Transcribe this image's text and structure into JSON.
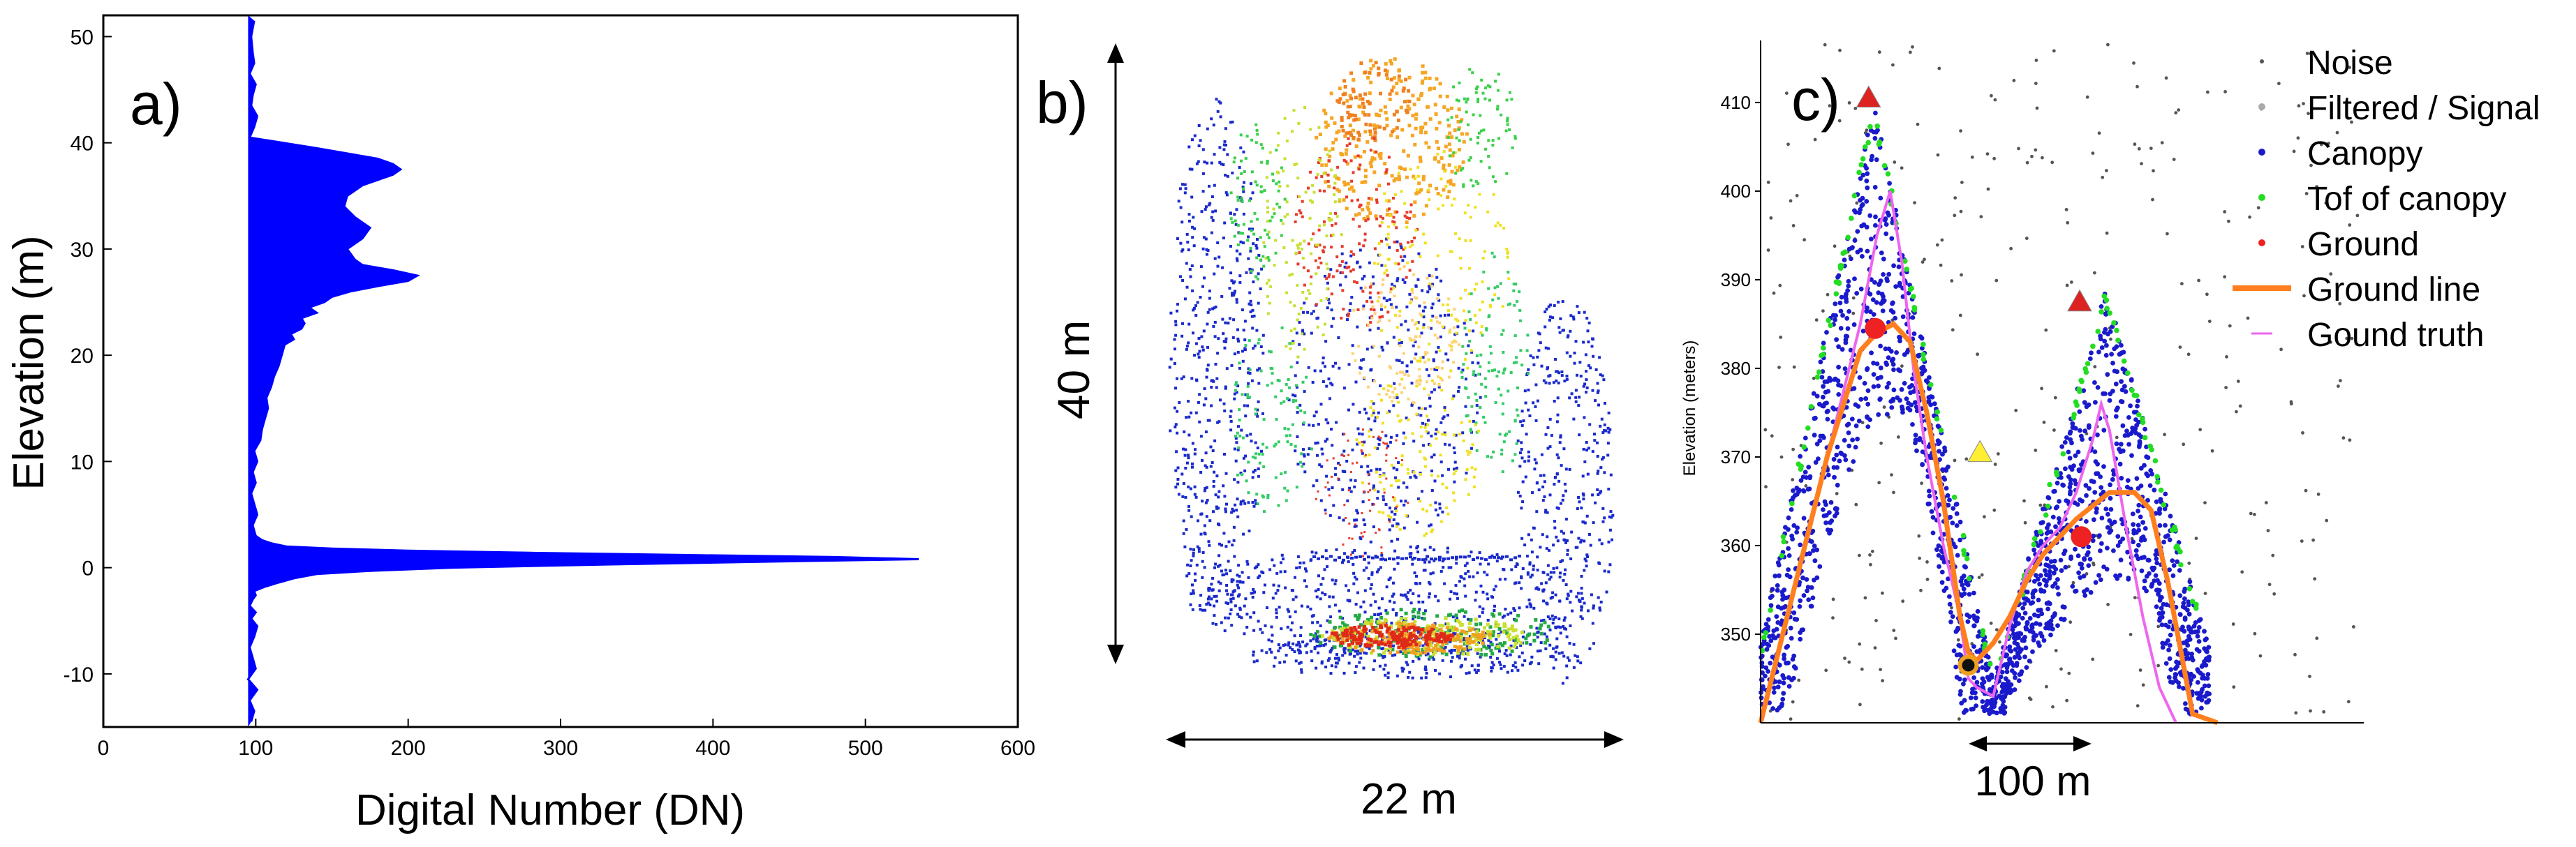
{
  "panel_a": {
    "letter": "a)",
    "chart_data": {
      "type": "line",
      "xlabel": "Digital Number (DN)",
      "ylabel": "Elevation (m)",
      "xlim": [
        0,
        600
      ],
      "ylim": [
        -15,
        52
      ],
      "xticks": [
        "0",
        "100",
        "200",
        "300",
        "400",
        "500",
        "600"
      ],
      "yticks": [
        "-10",
        "0",
        "10",
        "20",
        "30",
        "40",
        "50"
      ],
      "series": [
        {
          "color": "#0000ff",
          "x": [
            97,
            99,
            96,
            101,
            95,
            100,
            98,
            96,
            99,
            101,
            97,
            100,
            96,
            98,
            100,
            99,
            106,
            115,
            125,
            140,
            175,
            230,
            330,
            450,
            535,
            480,
            380,
            280,
            200,
            150,
            120,
            110,
            104,
            100,
            99,
            98,
            101,
            99,
            97,
            100,
            98,
            101,
            99,
            103,
            104,
            106,
            108,
            107,
            110,
            112,
            115,
            117,
            119,
            125,
            123,
            130,
            132,
            130,
            140,
            135,
            145,
            150,
            162,
            180,
            200,
            206,
            190,
            170,
            165,
            160,
            170,
            175,
            165,
            158,
            160,
            170,
            180,
            190,
            195,
            190,
            180,
            140,
            96,
            99,
            101,
            97,
            98,
            100,
            96,
            99,
            98,
            97,
            99
          ],
          "y": [
            -14.5,
            -13.5,
            -12.5,
            -11.5,
            -10.5,
            -9.5,
            -8.5,
            -7.5,
            -6.5,
            -5.5,
            -4.8,
            -4.2,
            -3.6,
            -3.0,
            -2.6,
            -2.2,
            -1.8,
            -1.4,
            -1.0,
            -0.6,
            -0.3,
            0.0,
            0.3,
            0.6,
            0.8,
            1.0,
            1.2,
            1.4,
            1.6,
            1.8,
            2.0,
            2.3,
            2.6,
            3.0,
            3.5,
            4.0,
            5.0,
            6.0,
            7.0,
            8.0,
            9.0,
            10.0,
            11.0,
            12.0,
            13.0,
            14.0,
            15.0,
            16.0,
            17.0,
            18.0,
            19.0,
            20.0,
            21.0,
            21.5,
            22.0,
            22.5,
            23.0,
            23.5,
            24.0,
            24.5,
            25.0,
            25.5,
            26.0,
            26.5,
            27.0,
            27.5,
            28.0,
            28.5,
            29.0,
            30.0,
            31.0,
            32.0,
            33.0,
            34.0,
            35.0,
            36.0,
            36.5,
            37.0,
            37.5,
            38.0,
            38.5,
            39.5,
            40.5,
            41.5,
            42.5,
            43.5,
            44.5,
            45.5,
            46.5,
            47.5,
            48.5,
            50.0,
            51.5
          ]
        }
      ]
    }
  },
  "panel_b": {
    "letter": "b)",
    "height_label": "40 m",
    "width_label": "22 m"
  },
  "panel_c": {
    "letter": "c)",
    "chart_data": {
      "type": "scatter",
      "ylabel": "Elevation (meters)",
      "ylim": [
        340,
        417
      ],
      "yticks": [
        "350",
        "360",
        "370",
        "380",
        "390",
        "400",
        "410"
      ],
      "scale_label": "100 m",
      "legend": {
        "placement": "right",
        "entries": [
          "Noise",
          "Filtered / Signal",
          "Canopy",
          "Tof of canopy",
          "Ground",
          "Ground line",
          "Gound truth"
        ]
      },
      "colors": {
        "noise": "#555555",
        "filtered": "#aaaaaa",
        "canopy": "#1a1acc",
        "top_of_canopy": "#22dd22",
        "ground": "#ee2222",
        "ground_line": "#ff7f1e",
        "ground_truth": "#ee66ee"
      },
      "ground_line": {
        "x": [
          0,
          2,
          4,
          6,
          7,
          8,
          9,
          10,
          11,
          12,
          12.5,
          13,
          14,
          15,
          16,
          17,
          17.5,
          18,
          19,
          21,
          22.5,
          23.5,
          24.5,
          25.5,
          26,
          27.5
        ],
        "y": [
          340,
          355,
          370,
          382,
          384,
          385,
          383,
          375,
          365,
          352,
          348,
          347,
          349,
          352,
          356,
          359,
          360,
          361,
          363,
          366,
          366,
          364,
          356,
          346,
          341,
          340
        ]
      },
      "ground_truth": {
        "x": [
          0,
          2,
          4,
          6,
          7,
          7.8,
          8.5,
          9.2,
          10,
          11,
          12,
          12.5,
          13,
          14,
          15,
          16,
          17,
          18,
          19,
          20,
          20.5,
          21,
          22,
          23,
          24,
          25
        ],
        "y": [
          340,
          355,
          370,
          385,
          395,
          400,
          392,
          380,
          370,
          360,
          352,
          345,
          344,
          343,
          351,
          357,
          360,
          362,
          366,
          372,
          376,
          373,
          362,
          352,
          344,
          340
        ]
      },
      "markers": [
        {
          "type": "triangle",
          "color": "#dd2222",
          "x": 6.5,
          "y": 410.5
        },
        {
          "type": "triangle",
          "color": "#dd2222",
          "x": 19.2,
          "y": 387.5
        },
        {
          "type": "triangle",
          "color": "#ffee33",
          "x": 13.2,
          "y": 370.5
        },
        {
          "type": "circle",
          "color": "#ee2222",
          "x": 6.9,
          "y": 384.5
        },
        {
          "type": "circle",
          "color": "#ee2222",
          "x": 19.3,
          "y": 361
        },
        {
          "type": "circle",
          "color": "#111111",
          "x": 12.5,
          "y": 346.5
        }
      ]
    }
  }
}
